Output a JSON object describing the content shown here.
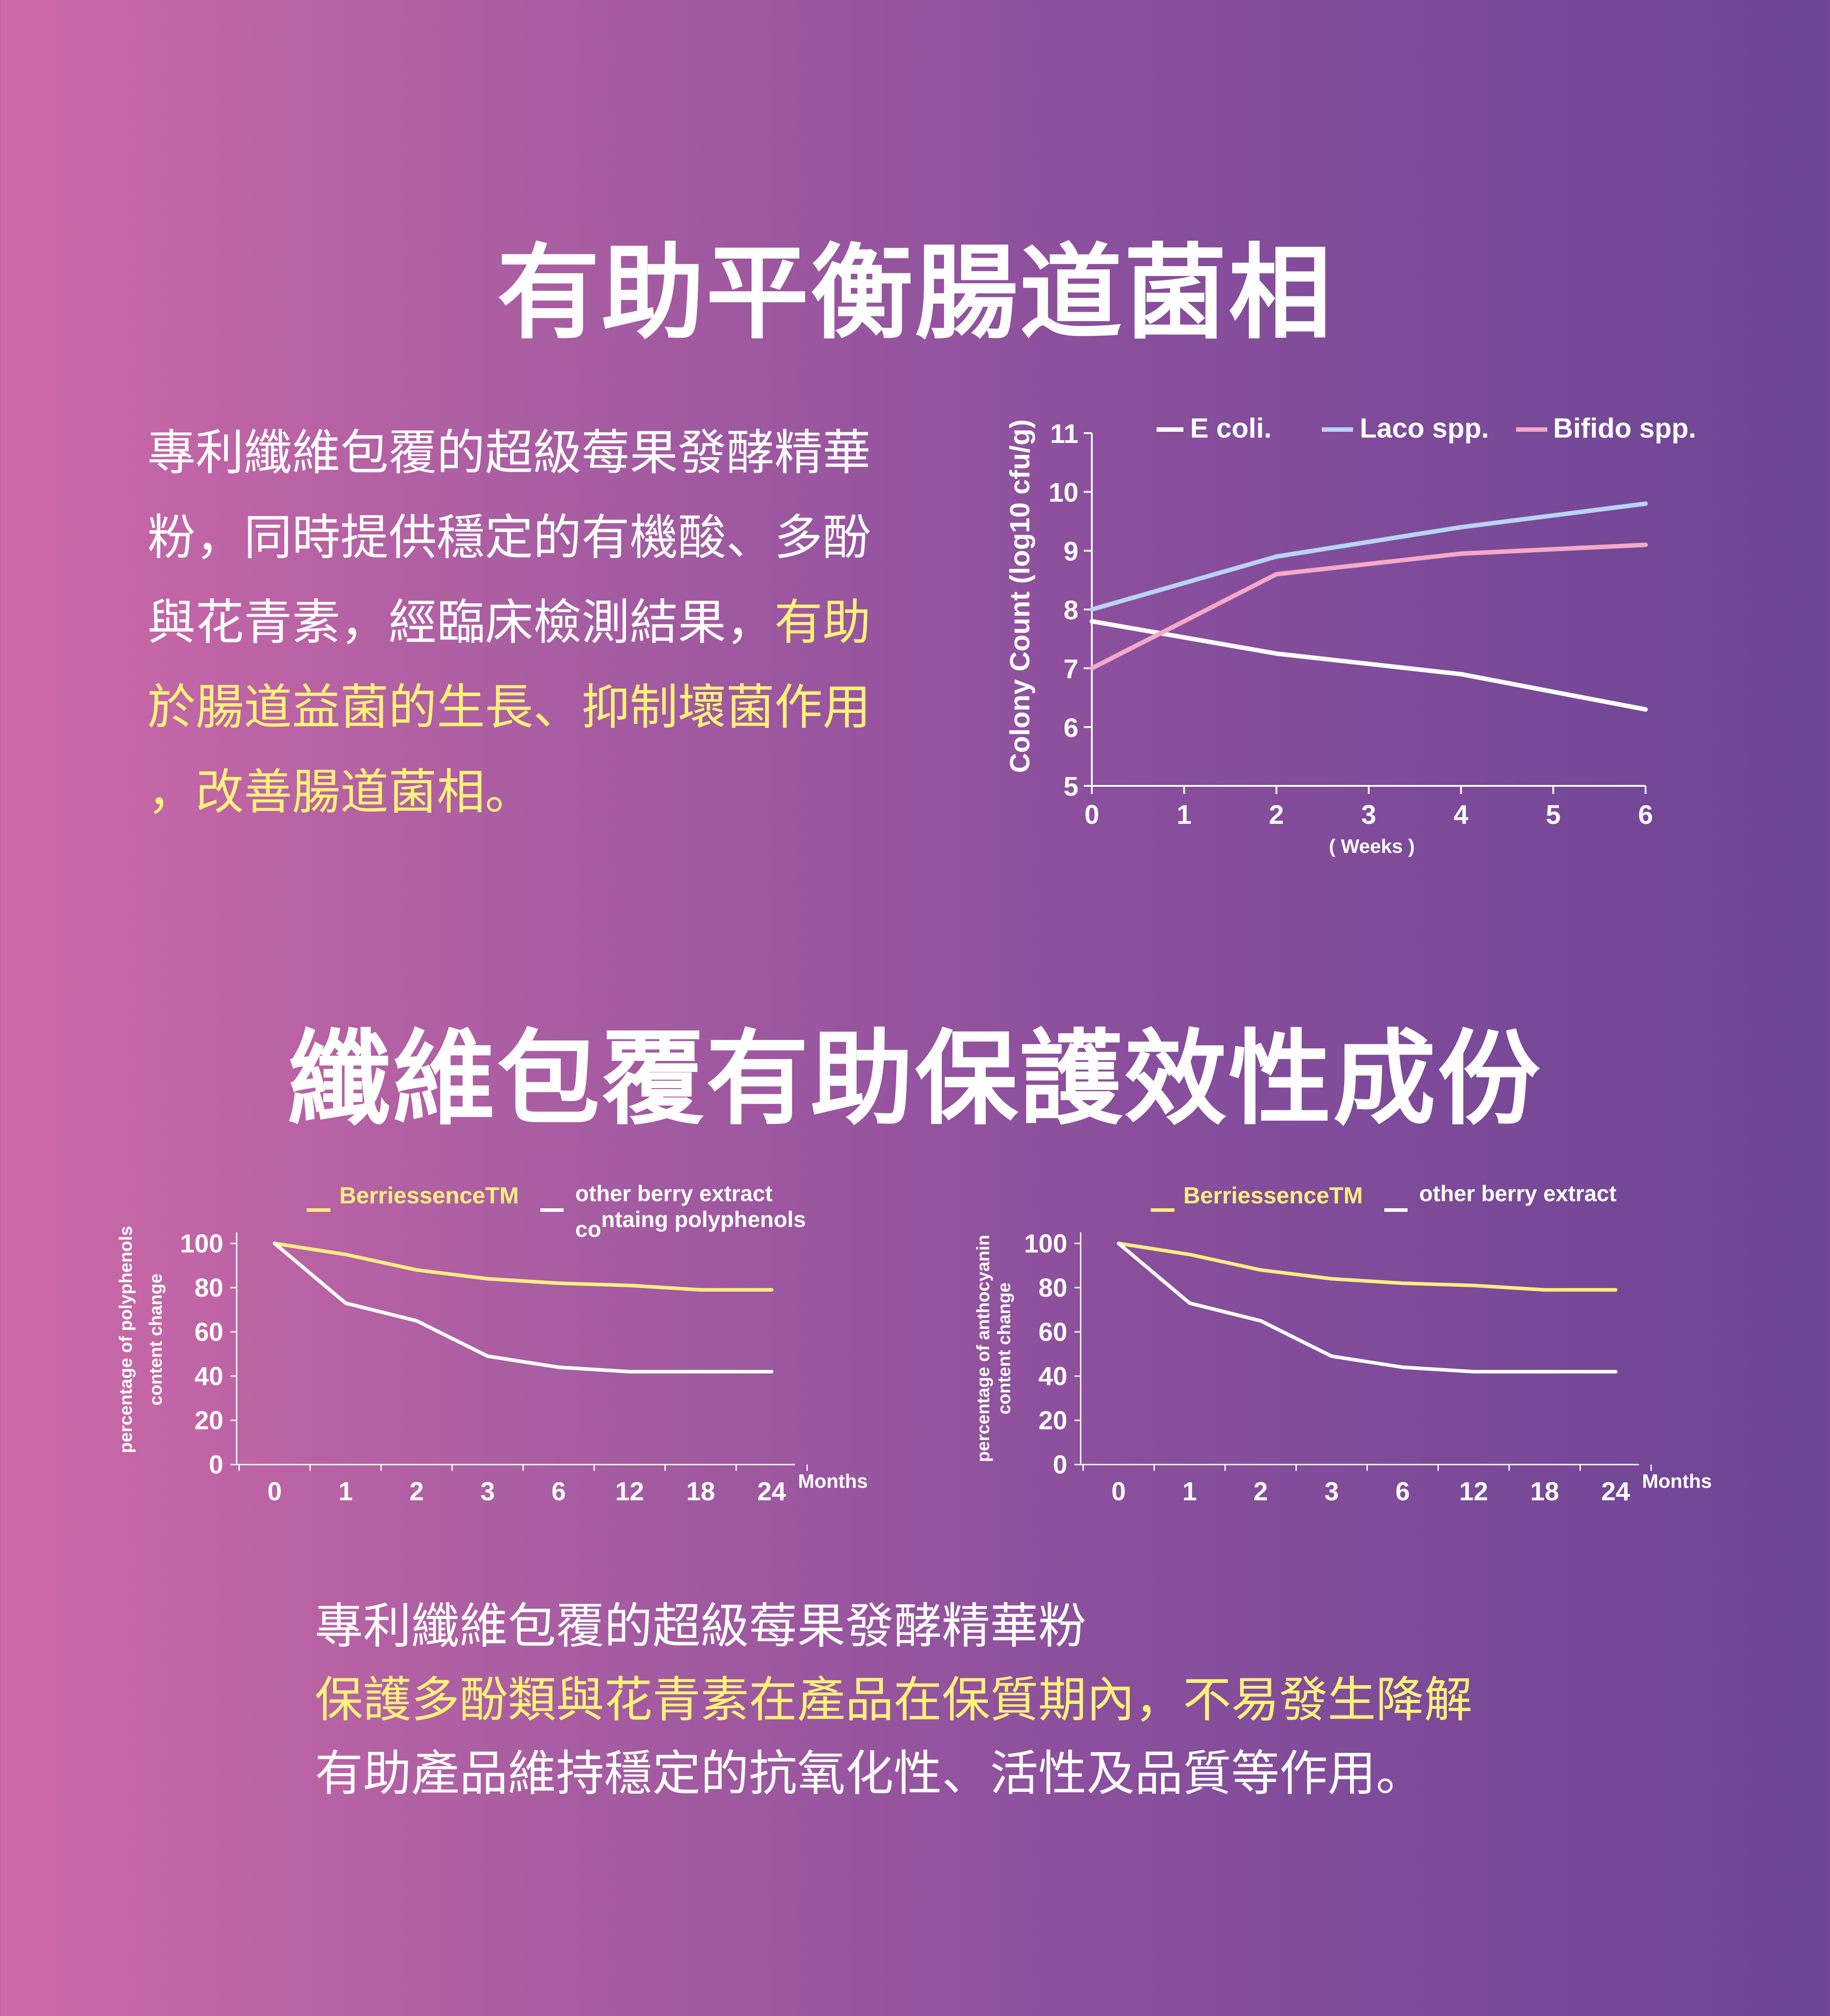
{
  "section1": {
    "title": "有助平衡腸道菌相",
    "paragraph": [
      {
        "normal": "專利纖維包覆的超級莓果發酵精華",
        "highlight": ""
      },
      {
        "normal": "粉，同時提供穩定的有機酸、多酚",
        "highlight": ""
      },
      {
        "normal": "與花青素，經臨床檢測結果，",
        "highlight": "有助"
      },
      {
        "normal": "",
        "highlight": "於腸道益菌的生長、抑制壞菌作用"
      },
      {
        "normal": "",
        "highlight": "，改善腸道菌相。"
      }
    ]
  },
  "section2": {
    "title": "纖維包覆有助保護效性成份",
    "paragraph": [
      {
        "normal": "專利纖維包覆的超級莓果發酵精華粉",
        "highlight": ""
      },
      {
        "normal": "",
        "highlight": "保護多酚類與花青素在產品在保質期內，不易發生降解"
      },
      {
        "normal": "有助產品維持穩定的抗氧化性、活性及品質等作用。",
        "highlight": ""
      }
    ]
  },
  "colors": {
    "highlight": "#fff27a",
    "e_coli": "#ffffff",
    "laco": "#b9d3f5",
    "bifido": "#f4a9c8",
    "berriessence": "#ffee82",
    "other": "#ffffff"
  },
  "chart_data": [
    {
      "type": "line",
      "xlabel": "( Weeks )",
      "ylabel": "Colony Count (log10 cfu/g)",
      "x": [
        0,
        1,
        2,
        3,
        4,
        5,
        6
      ],
      "x_ticks": [
        "0",
        "1",
        "2",
        "3",
        "4",
        "5",
        "6"
      ],
      "y_ticks": [
        "5",
        "6",
        "7",
        "8",
        "9",
        "10",
        "11"
      ],
      "ylim": [
        5,
        11
      ],
      "legend_position": "top",
      "series": [
        {
          "name": "E coli.",
          "color": "#ffffff",
          "x": [
            0,
            2,
            4,
            6
          ],
          "values": [
            7.8,
            7.25,
            6.9,
            6.3
          ]
        },
        {
          "name": "Laco spp.",
          "color": "#b9d3f5",
          "x": [
            0,
            2,
            4,
            6
          ],
          "values": [
            8.0,
            8.9,
            9.4,
            9.8
          ]
        },
        {
          "name": "Bifido spp.",
          "color": "#f4a9c8",
          "x": [
            0,
            2,
            4,
            6
          ],
          "values": [
            7.0,
            8.6,
            8.95,
            9.1
          ]
        }
      ]
    },
    {
      "type": "line",
      "ylabel_line1": "percentage of polyphenols",
      "ylabel_line2": "content change",
      "xlabel": "Months",
      "categories": [
        "0",
        "1",
        "2",
        "3",
        "6",
        "12",
        "18",
        "24"
      ],
      "y_ticks": [
        "0",
        "20",
        "40",
        "60",
        "80",
        "100"
      ],
      "ylim": [
        0,
        100
      ],
      "legend": {
        "series1": "BerriessenceTM",
        "series2_line1": "other berry extract",
        "series2_prefix": "co",
        "series2_rest": "ntaing polyphenols"
      },
      "series": [
        {
          "name": "BerriessenceTM",
          "color": "#ffee82",
          "values": [
            100,
            95,
            88,
            84,
            82,
            81,
            79,
            79
          ]
        },
        {
          "name": "other berry extract containg polyphenols",
          "color": "#ffffff",
          "values": [
            100,
            73,
            65,
            49,
            44,
            42,
            42,
            42
          ]
        }
      ]
    },
    {
      "type": "line",
      "ylabel_line1": "percentage of anthocyanin",
      "ylabel_line2": "content change",
      "xlabel": "Months",
      "categories": [
        "0",
        "1",
        "2",
        "3",
        "6",
        "12",
        "18",
        "24"
      ],
      "y_ticks": [
        "0",
        "20",
        "40",
        "60",
        "80",
        "100"
      ],
      "ylim": [
        0,
        100
      ],
      "legend": {
        "series1": "BerriessenceTM",
        "series2_line1": "other berry extract"
      },
      "series": [
        {
          "name": "BerriessenceTM",
          "color": "#ffee82",
          "values": [
            100,
            95,
            88,
            84,
            82,
            81,
            79,
            79
          ]
        },
        {
          "name": "other berry extract",
          "color": "#ffffff",
          "values": [
            100,
            73,
            65,
            49,
            44,
            42,
            42,
            42
          ]
        }
      ]
    }
  ]
}
